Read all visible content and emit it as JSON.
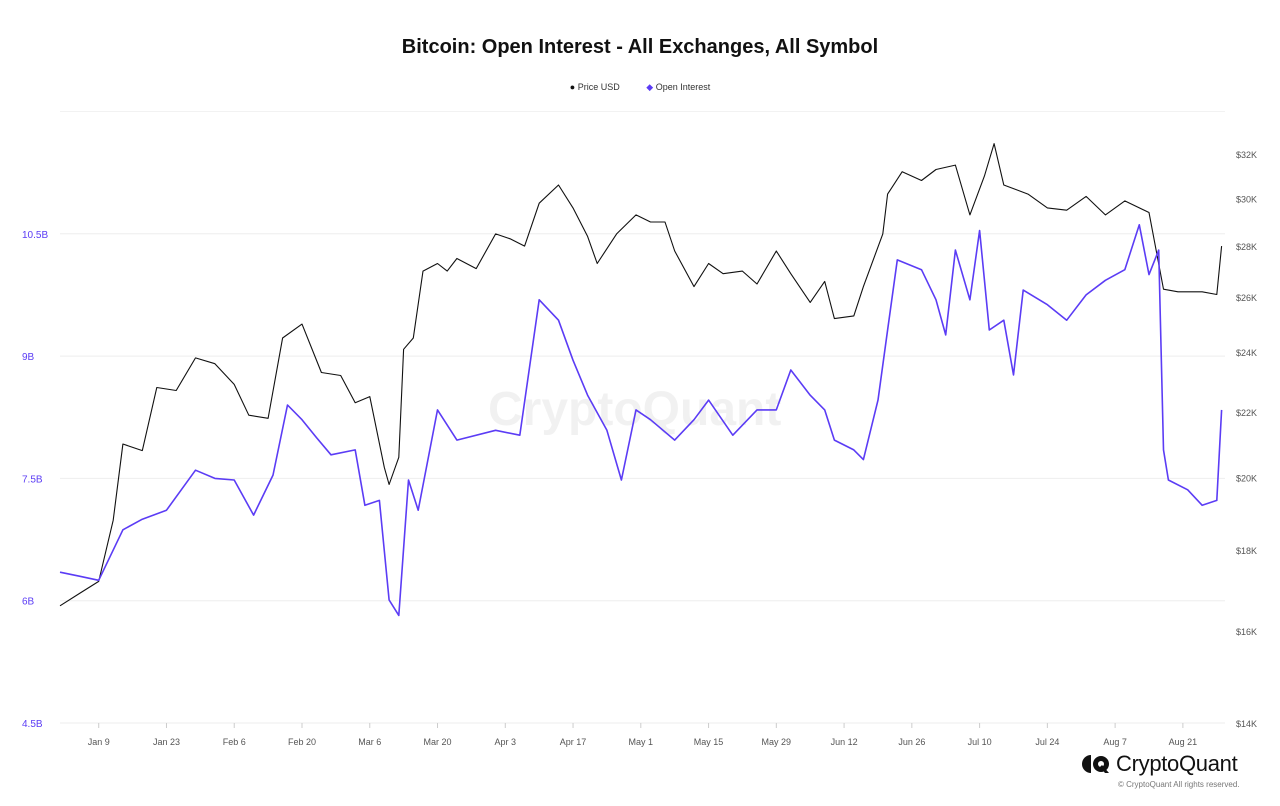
{
  "chart_data": {
    "type": "line",
    "title": "Bitcoin: Open Interest - All Exchanges, All Symbol",
    "legend": {
      "placement": "top-center"
    },
    "grid": true,
    "x_ticks": [
      "Jan 9",
      "Jan 23",
      "Feb 6",
      "Feb 20",
      "Mar 6",
      "Mar 20",
      "Apr 3",
      "Apr 17",
      "May 1",
      "May 15",
      "May 29",
      "Jun 12",
      "Jun 26",
      "Jul 10",
      "Jul 24",
      "Aug 7",
      "Aug 21"
    ],
    "xlim": [
      "Jan 1",
      "Aug 29"
    ],
    "y_left": {
      "ticks": [
        "4.5B",
        "6B",
        "7.5B",
        "9B",
        "10.5B"
      ],
      "values": [
        4.5,
        6,
        7.5,
        9,
        10.5
      ],
      "range": [
        4.5,
        12
      ],
      "color": "#5b3cf5"
    },
    "y_right": {
      "ticks": [
        "$14K",
        "$16K",
        "$18K",
        "$20K",
        "$22K",
        "$24K",
        "$26K",
        "$28K",
        "$30K",
        "$32K"
      ],
      "values": [
        14,
        16,
        18,
        20,
        22,
        24,
        26,
        28,
        30,
        32
      ],
      "range": [
        14,
        35
      ],
      "scale": "log"
    },
    "series": [
      {
        "name": "Price USD",
        "color": "#111111",
        "axis": "right",
        "unit": "K USD",
        "x": [
          "Jan 1",
          "Jan 5",
          "Jan 9",
          "Jan 12",
          "Jan 14",
          "Jan 18",
          "Jan 21",
          "Jan 25",
          "Jan 29",
          "Feb 2",
          "Feb 6",
          "Feb 9",
          "Feb 13",
          "Feb 16",
          "Feb 20",
          "Feb 24",
          "Feb 28",
          "Mar 3",
          "Mar 6",
          "Mar 9",
          "Mar 10",
          "Mar 12",
          "Mar 13",
          "Mar 15",
          "Mar 17",
          "Mar 20",
          "Mar 22",
          "Mar 24",
          "Mar 28",
          "Apr 1",
          "Apr 4",
          "Apr 7",
          "Apr 10",
          "Apr 14",
          "Apr 17",
          "Apr 20",
          "Apr 22",
          "Apr 26",
          "Apr 30",
          "May 3",
          "May 6",
          "May 8",
          "May 12",
          "May 15",
          "May 18",
          "May 22",
          "May 25",
          "May 29",
          "Jun 1",
          "Jun 5",
          "Jun 8",
          "Jun 10",
          "Jun 14",
          "Jun 16",
          "Jun 20",
          "Jun 21",
          "Jun 24",
          "Jun 28",
          "Jul 1",
          "Jul 5",
          "Jul 8",
          "Jul 11",
          "Jul 13",
          "Jul 15",
          "Jul 20",
          "Jul 24",
          "Jul 28",
          "Aug 1",
          "Aug 5",
          "Aug 9",
          "Aug 14",
          "Aug 17",
          "Aug 20",
          "Aug 25",
          "Aug 28",
          "Aug 29"
        ],
        "values": [
          16.6,
          16.9,
          17.2,
          18.8,
          21.0,
          20.8,
          22.8,
          22.7,
          23.8,
          23.6,
          22.9,
          21.9,
          21.8,
          24.5,
          25.0,
          23.3,
          23.2,
          22.3,
          22.5,
          20.3,
          19.8,
          20.6,
          24.1,
          24.5,
          27.0,
          27.3,
          27.0,
          27.5,
          27.1,
          28.5,
          28.3,
          28.0,
          29.8,
          30.6,
          29.6,
          28.4,
          27.3,
          28.5,
          29.3,
          29.0,
          29.0,
          27.8,
          26.4,
          27.3,
          26.9,
          27.0,
          26.5,
          27.8,
          26.9,
          25.8,
          26.6,
          25.2,
          25.3,
          26.4,
          28.5,
          30.2,
          31.2,
          30.8,
          31.3,
          31.5,
          29.3,
          31.0,
          32.5,
          30.6,
          30.2,
          29.6,
          29.5,
          30.1,
          29.3,
          29.9,
          29.4,
          26.3,
          26.2,
          26.2,
          26.1,
          28.0
        ]
      },
      {
        "name": "Open Interest",
        "color": "#5b3cf5",
        "axis": "left",
        "unit": "B USD",
        "x": [
          "Jan 1",
          "Jan 5",
          "Jan 9",
          "Jan 14",
          "Jan 18",
          "Jan 23",
          "Jan 29",
          "Feb 2",
          "Feb 6",
          "Feb 10",
          "Feb 14",
          "Feb 17",
          "Feb 20",
          "Feb 23",
          "Feb 26",
          "Mar 3",
          "Mar 5",
          "Mar 8",
          "Mar 10",
          "Mar 12",
          "Mar 14",
          "Mar 16",
          "Mar 20",
          "Mar 24",
          "Apr 1",
          "Apr 6",
          "Apr 10",
          "Apr 14",
          "Apr 17",
          "Apr 20",
          "Apr 24",
          "Apr 27",
          "Apr 30",
          "May 3",
          "May 8",
          "May 12",
          "May 15",
          "May 20",
          "May 25",
          "May 29",
          "Jun 1",
          "Jun 5",
          "Jun 8",
          "Jun 10",
          "Jun 14",
          "Jun 16",
          "Jun 19",
          "Jun 21",
          "Jun 23",
          "Jun 28",
          "Jul 1",
          "Jul 3",
          "Jul 5",
          "Jul 8",
          "Jul 10",
          "Jul 12",
          "Jul 15",
          "Jul 17",
          "Jul 19",
          "Jul 24",
          "Jul 28",
          "Aug 1",
          "Aug 5",
          "Aug 9",
          "Aug 12",
          "Aug 14",
          "Aug 16",
          "Aug 17",
          "Aug 18",
          "Aug 22",
          "Aug 25",
          "Aug 28",
          "Aug 29"
        ],
        "values": [
          6.35,
          6.3,
          6.25,
          6.87,
          7.0,
          7.11,
          7.6,
          7.5,
          7.48,
          7.05,
          7.54,
          8.4,
          8.22,
          8.0,
          7.79,
          7.85,
          7.17,
          7.23,
          6.01,
          5.82,
          7.48,
          7.11,
          8.34,
          7.97,
          8.09,
          8.03,
          9.69,
          9.44,
          8.95,
          8.52,
          8.09,
          7.48,
          8.34,
          8.22,
          7.97,
          8.22,
          8.46,
          8.03,
          8.34,
          8.34,
          8.83,
          8.52,
          8.34,
          7.97,
          7.85,
          7.73,
          8.46,
          9.32,
          10.18,
          10.06,
          9.69,
          9.26,
          10.3,
          9.69,
          10.54,
          9.32,
          9.44,
          8.77,
          9.81,
          9.63,
          9.44,
          9.75,
          9.93,
          10.06,
          10.61,
          10.0,
          10.3,
          7.85,
          7.48,
          7.36,
          7.17,
          7.23,
          8.34
        ]
      }
    ]
  },
  "branding": {
    "logo": "CryptoQuant",
    "copyright": "© CryptoQuant All rights reserved.",
    "watermark": "CryptoQuant"
  }
}
